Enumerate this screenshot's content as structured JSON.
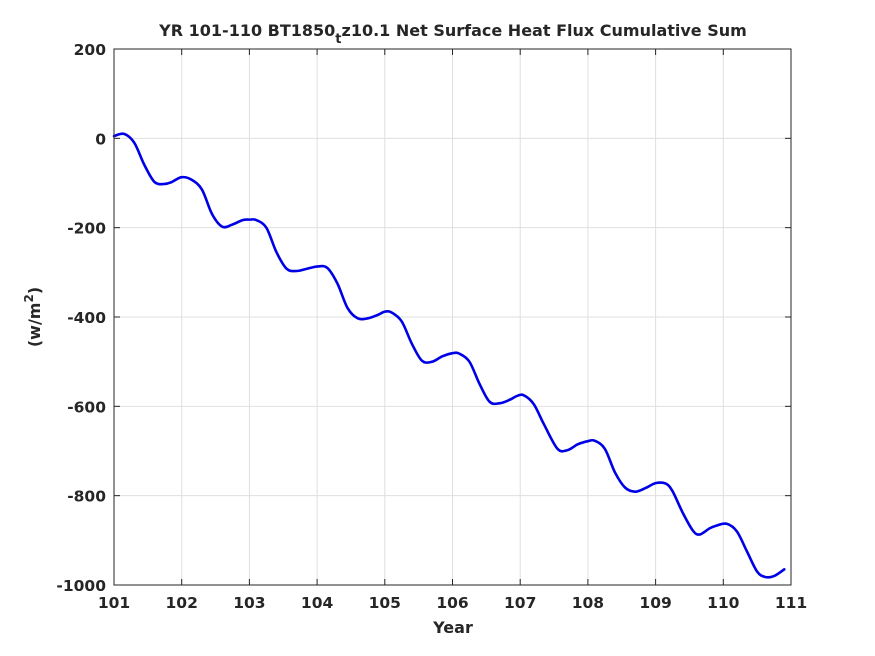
{
  "chart_data": {
    "type": "line",
    "title": "YR 101-110 BT1850_tz10.1 Net Surface Heat Flux  Cumulative Sum",
    "title_parts": {
      "before": "YR 101-110 BT1850",
      "subscript": "t",
      "after": "z10.1 Net Surface Heat Flux  Cumulative Sum"
    },
    "xlabel": "Year",
    "ylabel": "(w/m2)",
    "ylabel_parts": {
      "base": "(w/m",
      "superscript": "2",
      "close": ")"
    },
    "xlim": [
      101,
      111
    ],
    "ylim": [
      -1000,
      200
    ],
    "x_ticks": [
      "101",
      "102",
      "103",
      "104",
      "105",
      "106",
      "107",
      "108",
      "109",
      "110",
      "111"
    ],
    "y_ticks": [
      "200",
      "0",
      "-200",
      "-400",
      "-600",
      "-800",
      "-1000"
    ],
    "grid": true,
    "legend": "none",
    "series": [
      {
        "color": "#0000e6",
        "points": [
          [
            101.0,
            5
          ],
          [
            101.15,
            10
          ],
          [
            101.3,
            -10
          ],
          [
            101.45,
            -60
          ],
          [
            101.6,
            -98
          ],
          [
            101.75,
            -102
          ],
          [
            101.85,
            -98
          ],
          [
            102.0,
            -87
          ],
          [
            102.15,
            -93
          ],
          [
            102.3,
            -115
          ],
          [
            102.45,
            -170
          ],
          [
            102.6,
            -198
          ],
          [
            102.75,
            -193
          ],
          [
            102.9,
            -183
          ],
          [
            103.0,
            -182
          ],
          [
            103.1,
            -183
          ],
          [
            103.25,
            -200
          ],
          [
            103.4,
            -255
          ],
          [
            103.55,
            -292
          ],
          [
            103.7,
            -297
          ],
          [
            103.85,
            -292
          ],
          [
            104.0,
            -287
          ],
          [
            104.15,
            -290
          ],
          [
            104.3,
            -325
          ],
          [
            104.45,
            -380
          ],
          [
            104.6,
            -403
          ],
          [
            104.75,
            -403
          ],
          [
            104.9,
            -395
          ],
          [
            105.0,
            -388
          ],
          [
            105.1,
            -390
          ],
          [
            105.25,
            -410
          ],
          [
            105.4,
            -460
          ],
          [
            105.55,
            -498
          ],
          [
            105.7,
            -500
          ],
          [
            105.85,
            -488
          ],
          [
            106.0,
            -481
          ],
          [
            106.1,
            -482
          ],
          [
            106.25,
            -500
          ],
          [
            106.4,
            -550
          ],
          [
            106.55,
            -590
          ],
          [
            106.7,
            -593
          ],
          [
            106.85,
            -585
          ],
          [
            106.95,
            -577
          ],
          [
            107.05,
            -575
          ],
          [
            107.2,
            -595
          ],
          [
            107.35,
            -640
          ],
          [
            107.55,
            -695
          ],
          [
            107.7,
            -698
          ],
          [
            107.85,
            -685
          ],
          [
            108.0,
            -678
          ],
          [
            108.1,
            -677
          ],
          [
            108.25,
            -695
          ],
          [
            108.4,
            -748
          ],
          [
            108.55,
            -782
          ],
          [
            108.7,
            -791
          ],
          [
            108.85,
            -783
          ],
          [
            109.0,
            -772
          ],
          [
            109.15,
            -773
          ],
          [
            109.25,
            -790
          ],
          [
            109.4,
            -838
          ],
          [
            109.55,
            -878
          ],
          [
            109.65,
            -887
          ],
          [
            109.8,
            -873
          ],
          [
            109.9,
            -867
          ],
          [
            110.05,
            -863
          ],
          [
            110.2,
            -880
          ],
          [
            110.35,
            -925
          ],
          [
            110.5,
            -970
          ],
          [
            110.62,
            -982
          ],
          [
            110.75,
            -980
          ],
          [
            110.9,
            -965
          ]
        ]
      }
    ]
  }
}
